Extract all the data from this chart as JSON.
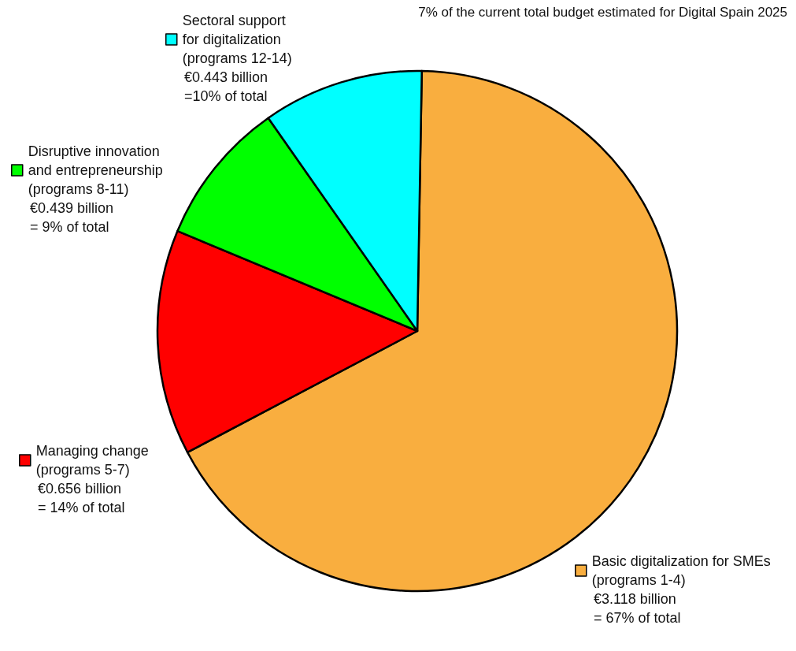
{
  "chart_data": {
    "type": "pie",
    "annotations": [
      "7% of the current total budget estimated for Digital Spain 2025"
    ],
    "legend": "left",
    "categories": [
      "Basic digitalization for SMEs (programs 1-4)",
      "Managing change (programs 5-7)",
      "Disruptive innovation and entrepreneurship (programs 8-11)",
      "Sectoral support for digitalization (programs 12-14)"
    ],
    "values": [
      67,
      14,
      9,
      10
    ],
    "colors": [
      "#f9ae3f",
      "#ff0000",
      "#00ff00",
      "#00ffff"
    ],
    "value_labels": [
      "€3.118 billion = 67% of total",
      "€0.656 billion = 14% of total",
      "€0.439 billion = 9% of total",
      "€0.443 billion =10% of total"
    ]
  }
}
